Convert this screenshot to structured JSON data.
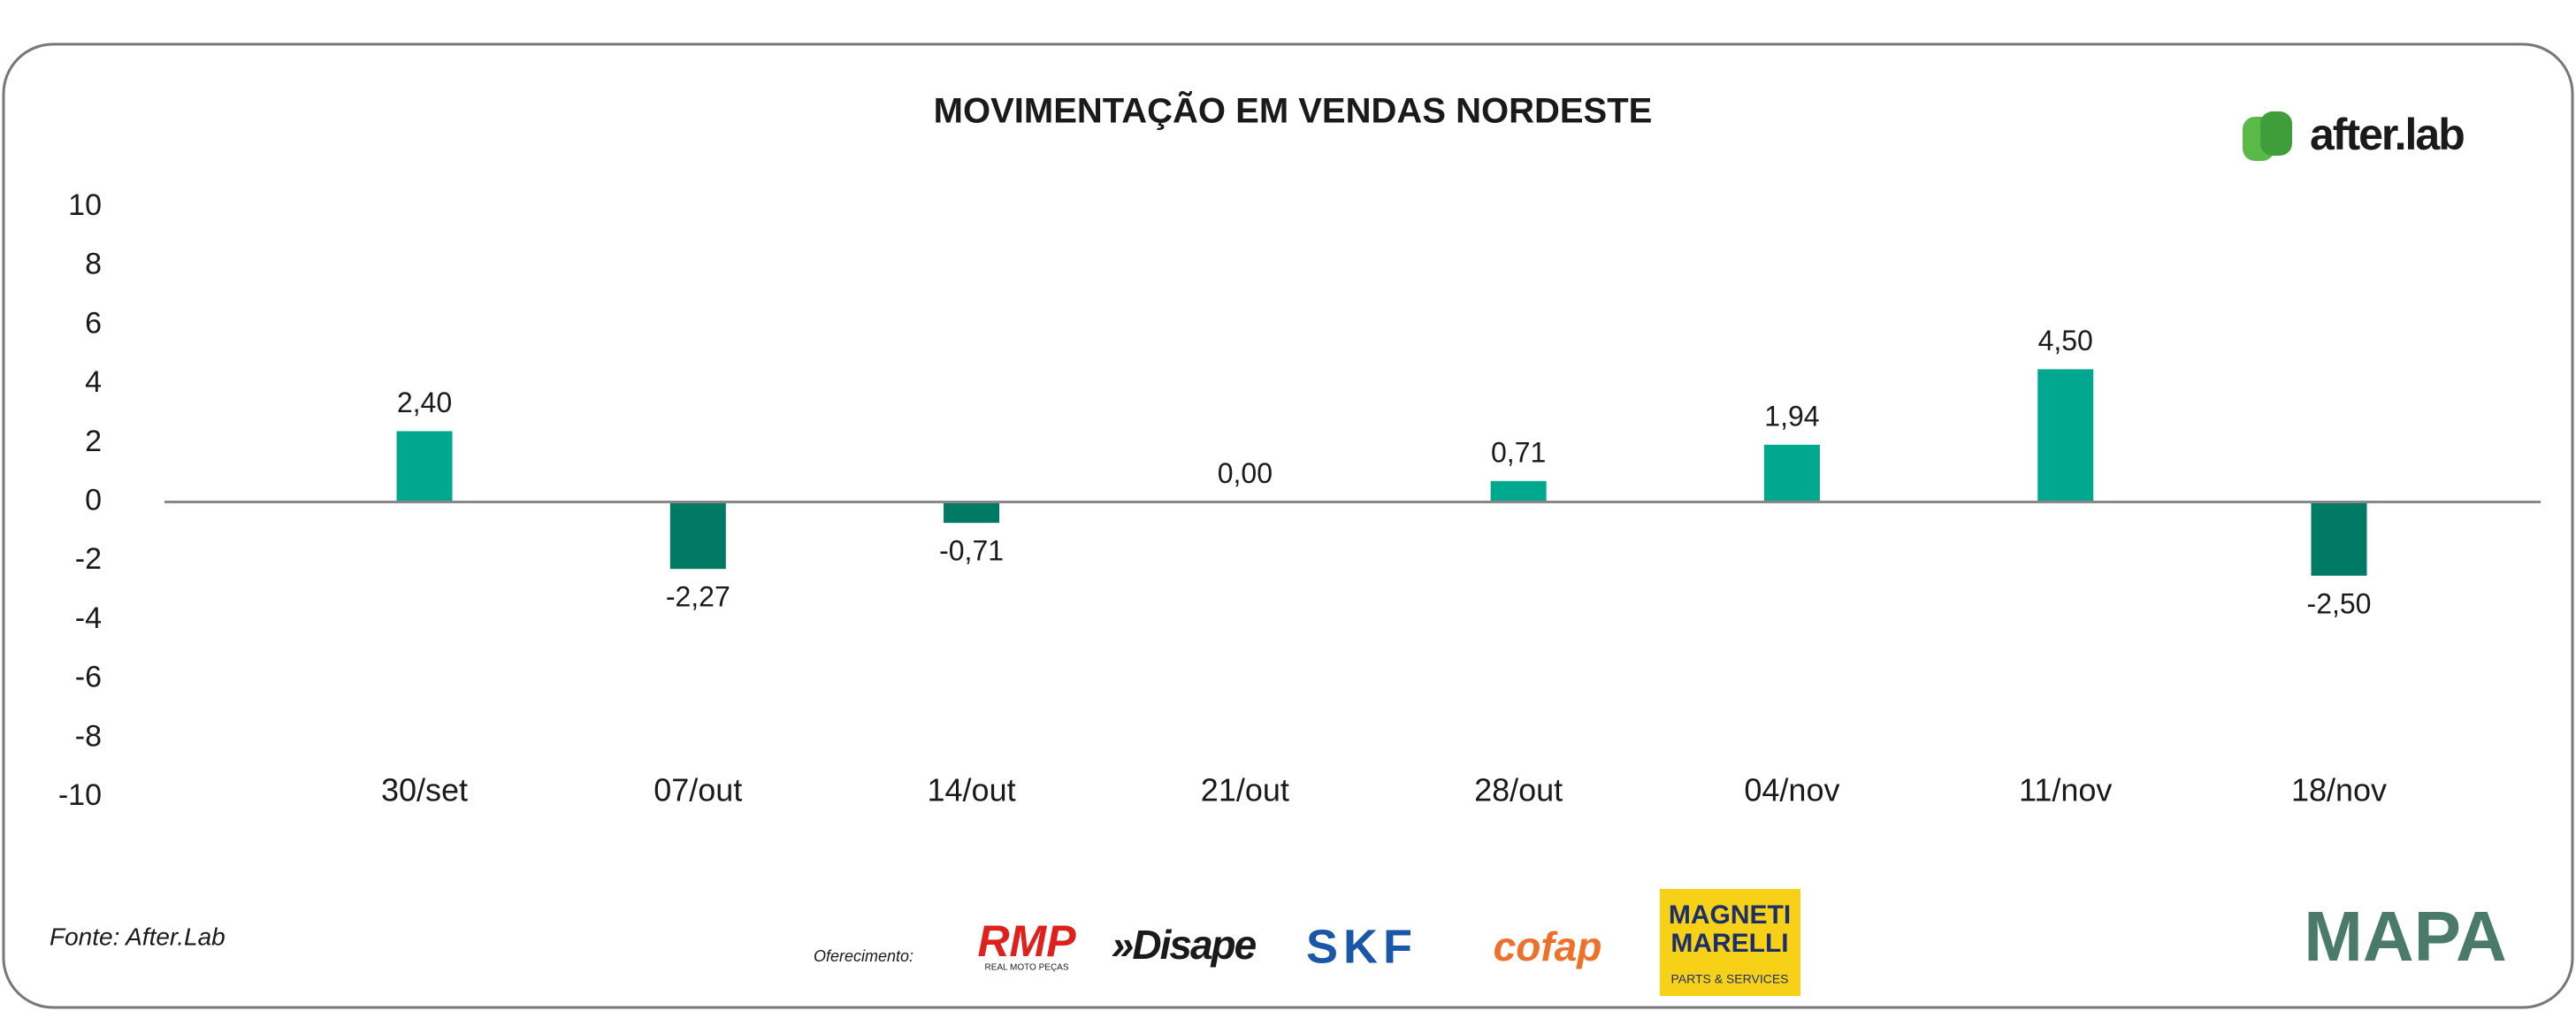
{
  "chart_data": {
    "type": "bar",
    "title": "MOVIMENTAÇÃO EM VENDAS NORDESTE",
    "categories": [
      "30/set",
      "07/out",
      "14/out",
      "21/out",
      "28/out",
      "04/nov",
      "11/nov",
      "18/nov"
    ],
    "values": [
      2.4,
      -2.27,
      -0.71,
      0.0,
      0.71,
      1.94,
      4.5,
      -2.5
    ],
    "value_labels": [
      "2,40",
      "-2,27",
      "-0,71",
      "0,00",
      "0,71",
      "1,94",
      "4,50",
      "-2,50"
    ],
    "positive_color": "#00a88f",
    "negative_color": "#007a65",
    "ylim": [
      -10,
      10
    ],
    "yticks": [
      -10,
      -8,
      -6,
      -4,
      -2,
      0,
      2,
      4,
      6,
      8,
      10
    ],
    "grid": false
  },
  "footer": {
    "source": "Fonte: After.Lab",
    "sponsor_label": "Oferecimento:",
    "sponsors": [
      "RMP",
      "REAL MOTO PEÇAS",
      "»Disape",
      "SKF",
      "cofap",
      "MAGNETI",
      "MARELLI",
      "PARTS & SERVICES"
    ],
    "brand": "after.lab",
    "mapa": "MAPA"
  }
}
